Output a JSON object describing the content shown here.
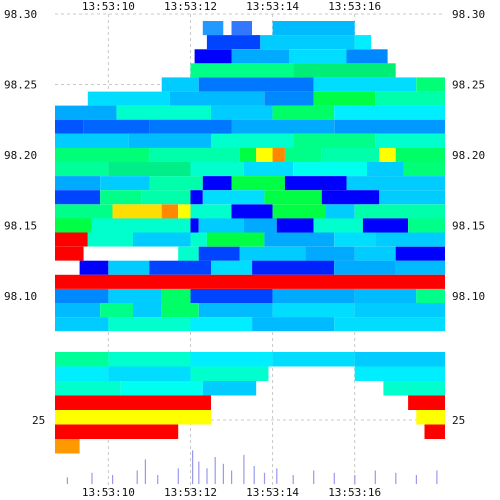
{
  "chart_data": {
    "type": "heatmap",
    "description_kind": "order-book depth heatmap with volume strip",
    "x_ticks": [
      "13:53:10",
      "13:53:12",
      "13:53:14",
      "13:53:16"
    ],
    "x_tick_seconds": [
      10,
      12,
      14,
      16
    ],
    "x_range_seconds": [
      8.7,
      18.2
    ],
    "y_ticks": [
      "98.30",
      "98.25",
      "98.20",
      "98.15",
      "98.10"
    ],
    "y_tick_values": [
      98.3,
      98.25,
      98.2,
      98.15,
      98.1
    ],
    "y_range": [
      98.075,
      98.3
    ],
    "volume_axis_label": "25",
    "grid": true,
    "grid_style": "dashed",
    "legend": "none",
    "color_scale": [
      "#0000ff",
      "#0088ff",
      "#00ccff",
      "#00ffaa",
      "#00ff44",
      "#ffff00",
      "#ff8800",
      "#ff0000"
    ],
    "rows": [
      {
        "p": 98.29,
        "segs": [
          [
            12.3,
            12.8,
            "#2299ff"
          ],
          [
            13.0,
            13.5,
            "#3377ff"
          ],
          [
            14.0,
            16.0,
            "#00bbff"
          ]
        ]
      },
      {
        "p": 98.28,
        "segs": [
          [
            12.4,
            13.7,
            "#0044ff"
          ],
          [
            13.7,
            16.0,
            "#00ccff"
          ],
          [
            16.0,
            16.4,
            "#00eeff"
          ]
        ]
      },
      {
        "p": 98.27,
        "segs": [
          [
            12.1,
            13.0,
            "#0000ff"
          ],
          [
            13.0,
            14.4,
            "#00aaff"
          ],
          [
            14.4,
            15.8,
            "#00ddff"
          ],
          [
            15.8,
            16.8,
            "#0088ff"
          ]
        ]
      },
      {
        "p": 98.26,
        "segs": [
          [
            12.0,
            14.5,
            "#00ff88"
          ],
          [
            14.5,
            17.0,
            "#00ee77"
          ]
        ]
      },
      {
        "p": 98.25,
        "segs": [
          [
            11.3,
            12.2,
            "#00ccff"
          ],
          [
            12.2,
            15.0,
            "#0077ff"
          ],
          [
            15.0,
            17.5,
            "#00ddff"
          ],
          [
            17.5,
            18.2,
            "#00ff77"
          ]
        ]
      },
      {
        "p": 98.24,
        "segs": [
          [
            9.5,
            11.5,
            "#00ddff"
          ],
          [
            11.5,
            13.8,
            "#00bbff"
          ],
          [
            13.8,
            15.0,
            "#0088ff"
          ],
          [
            15.0,
            16.5,
            "#00ff44"
          ],
          [
            16.5,
            18.2,
            "#00ffaa"
          ]
        ]
      },
      {
        "p": 98.23,
        "segs": [
          [
            8.7,
            10.2,
            "#00aaff"
          ],
          [
            10.2,
            12.5,
            "#00ffcc"
          ],
          [
            12.5,
            14.0,
            "#00ccff"
          ],
          [
            14.0,
            15.5,
            "#00ff66"
          ],
          [
            15.5,
            18.2,
            "#00eeff"
          ]
        ]
      },
      {
        "p": 98.22,
        "segs": [
          [
            8.7,
            9.4,
            "#0055ff"
          ],
          [
            9.4,
            11.0,
            "#0066ff"
          ],
          [
            11.0,
            13.0,
            "#0077ff"
          ],
          [
            13.0,
            15.5,
            "#00aaff"
          ],
          [
            15.5,
            18.2,
            "#0099ff"
          ]
        ]
      },
      {
        "p": 98.21,
        "segs": [
          [
            8.7,
            10.5,
            "#00ccff"
          ],
          [
            10.5,
            12.5,
            "#00bbff"
          ],
          [
            12.5,
            14.5,
            "#00ffcc"
          ],
          [
            14.5,
            16.5,
            "#00ff88"
          ],
          [
            16.5,
            18.2,
            "#00ffcc"
          ]
        ]
      },
      {
        "p": 98.2,
        "segs": [
          [
            8.7,
            11.0,
            "#00ff77"
          ],
          [
            11.0,
            13.2,
            "#00ffaa"
          ],
          [
            13.2,
            13.6,
            "#00ff44"
          ],
          [
            13.6,
            14.0,
            "#ffff00"
          ],
          [
            14.0,
            14.3,
            "#ff8800"
          ],
          [
            14.3,
            15.2,
            "#00ff88"
          ],
          [
            15.2,
            16.6,
            "#00ffaa"
          ],
          [
            16.6,
            17.0,
            "#ffff00"
          ],
          [
            17.0,
            18.2,
            "#00ff66"
          ]
        ]
      },
      {
        "p": 98.19,
        "segs": [
          [
            8.7,
            10.0,
            "#00ff99"
          ],
          [
            10.0,
            12.0,
            "#00ee88"
          ],
          [
            12.0,
            13.3,
            "#00ffcc"
          ],
          [
            13.3,
            14.5,
            "#00ddff"
          ],
          [
            14.5,
            16.3,
            "#00ffee"
          ],
          [
            16.3,
            17.2,
            "#00ccff"
          ],
          [
            17.2,
            18.2,
            "#00ff77"
          ]
        ]
      },
      {
        "p": 98.18,
        "segs": [
          [
            8.7,
            9.8,
            "#00aaff"
          ],
          [
            9.8,
            11.0,
            "#00ccff"
          ],
          [
            11.0,
            12.3,
            "#00ffaa"
          ],
          [
            12.3,
            13.0,
            "#0000ff"
          ],
          [
            13.0,
            14.3,
            "#00ff44"
          ],
          [
            14.3,
            15.8,
            "#0000ff"
          ],
          [
            15.8,
            18.2,
            "#00ccff"
          ]
        ]
      },
      {
        "p": 98.17,
        "segs": [
          [
            8.7,
            9.8,
            "#0044ff"
          ],
          [
            9.8,
            10.8,
            "#00ff88"
          ],
          [
            10.8,
            12.0,
            "#00ffaa"
          ],
          [
            12.0,
            12.3,
            "#0000ff"
          ],
          [
            12.3,
            13.8,
            "#00ddff"
          ],
          [
            13.8,
            15.2,
            "#00ff44"
          ],
          [
            15.2,
            16.6,
            "#0000ff"
          ],
          [
            16.6,
            18.2,
            "#00ccff"
          ]
        ]
      },
      {
        "p": 98.16,
        "segs": [
          [
            8.7,
            10.1,
            "#00ff88"
          ],
          [
            10.1,
            11.3,
            "#ffdd00"
          ],
          [
            11.3,
            11.7,
            "#ff8800"
          ],
          [
            11.7,
            12.0,
            "#ffff00"
          ],
          [
            12.0,
            13.0,
            "#00ffcc"
          ],
          [
            13.0,
            14.0,
            "#0000ff"
          ],
          [
            14.0,
            15.3,
            "#00ff44"
          ],
          [
            15.3,
            16.0,
            "#00ccff"
          ],
          [
            16.0,
            18.2,
            "#00ffaa"
          ]
        ]
      },
      {
        "p": 98.15,
        "segs": [
          [
            8.7,
            9.6,
            "#00ff44"
          ],
          [
            9.6,
            12.0,
            "#00ffcc"
          ],
          [
            12.0,
            12.2,
            "#0000ff"
          ],
          [
            12.2,
            13.3,
            "#00ccff"
          ],
          [
            13.3,
            14.1,
            "#00aaff"
          ],
          [
            14.1,
            15.0,
            "#0000ff"
          ],
          [
            15.0,
            16.2,
            "#00ffcc"
          ],
          [
            16.2,
            17.3,
            "#0000ff"
          ],
          [
            17.3,
            18.2,
            "#00ff88"
          ]
        ]
      },
      {
        "p": 98.14,
        "segs": [
          [
            8.7,
            9.5,
            "#ff0000"
          ],
          [
            9.5,
            10.6,
            "#00ffcc"
          ],
          [
            10.6,
            12.0,
            "#00ccff"
          ],
          [
            12.0,
            12.4,
            "#00ffcc"
          ],
          [
            12.4,
            13.8,
            "#00ff44"
          ],
          [
            13.8,
            15.5,
            "#00aaff"
          ],
          [
            15.5,
            16.5,
            "#00ddff"
          ],
          [
            16.5,
            18.2,
            "#00ccff"
          ]
        ]
      },
      {
        "p": 98.13,
        "segs": [
          [
            8.7,
            9.4,
            "#ff0000"
          ],
          [
            9.4,
            10.2,
            "#ffffff"
          ],
          [
            10.2,
            11.7,
            "#ffffff"
          ],
          [
            11.7,
            12.2,
            "#00ffcc"
          ],
          [
            12.2,
            13.2,
            "#0044ff"
          ],
          [
            13.2,
            14.8,
            "#00ccff"
          ],
          [
            14.8,
            16.0,
            "#00aaff"
          ],
          [
            16.0,
            17.0,
            "#00ccff"
          ],
          [
            17.0,
            18.2,
            "#0000ff"
          ]
        ]
      },
      {
        "p": 98.12,
        "segs": [
          [
            8.7,
            9.3,
            "#ffffff"
          ],
          [
            9.3,
            10.0,
            "#0000ff"
          ],
          [
            10.0,
            11.0,
            "#00ccff"
          ],
          [
            11.0,
            12.5,
            "#0044ff"
          ],
          [
            12.5,
            13.5,
            "#00ddff"
          ],
          [
            13.5,
            15.5,
            "#0022ff"
          ],
          [
            15.5,
            17.0,
            "#00aaff"
          ],
          [
            17.0,
            18.2,
            "#00bbff"
          ]
        ]
      },
      {
        "p": 98.11,
        "segs": [
          [
            8.7,
            18.2,
            "#ff0000"
          ]
        ]
      },
      {
        "p": 98.1,
        "segs": [
          [
            8.7,
            10.0,
            "#0088ff"
          ],
          [
            10.0,
            11.3,
            "#00ccff"
          ],
          [
            11.3,
            12.0,
            "#00ff66"
          ],
          [
            12.0,
            14.0,
            "#0044ff"
          ],
          [
            14.0,
            16.0,
            "#00aaff"
          ],
          [
            16.0,
            17.5,
            "#00bbff"
          ],
          [
            17.5,
            18.2,
            "#00ff88"
          ]
        ]
      },
      {
        "p": 98.09,
        "segs": [
          [
            8.7,
            9.8,
            "#00bbff"
          ],
          [
            9.8,
            10.6,
            "#00ff88"
          ],
          [
            10.6,
            11.3,
            "#00ccff"
          ],
          [
            11.3,
            12.2,
            "#00ff66"
          ],
          [
            12.2,
            14.0,
            "#00bbff"
          ],
          [
            14.0,
            16.0,
            "#00ddff"
          ],
          [
            16.0,
            18.2,
            "#00ccff"
          ]
        ]
      },
      {
        "p": 98.08,
        "segs": [
          [
            8.7,
            10.0,
            "#00ccff"
          ],
          [
            10.0,
            12.0,
            "#00ffcc"
          ],
          [
            12.0,
            13.5,
            "#00eeff"
          ],
          [
            13.5,
            15.5,
            "#00bbff"
          ],
          [
            15.5,
            18.2,
            "#00ddff"
          ]
        ]
      }
    ],
    "lower_rows": [
      {
        "segs": [
          [
            8.7,
            10.0,
            "#00ff99"
          ],
          [
            10.0,
            12.0,
            "#00ffcc"
          ],
          [
            12.0,
            14.0,
            "#00eeff"
          ],
          [
            14.0,
            16.0,
            "#00ddff"
          ],
          [
            16.0,
            18.2,
            "#00ccff"
          ]
        ]
      },
      {
        "segs": [
          [
            8.7,
            10.0,
            "#00eeff"
          ],
          [
            10.0,
            12.0,
            "#00ddff"
          ],
          [
            12.0,
            13.9,
            "#00ffcc"
          ],
          [
            16.0,
            18.2,
            "#00eeff"
          ]
        ]
      },
      {
        "segs": [
          [
            8.7,
            10.3,
            "#00ffcc"
          ],
          [
            10.3,
            12.3,
            "#00ffee"
          ],
          [
            12.3,
            13.6,
            "#00ccff"
          ],
          [
            16.7,
            18.2,
            "#00ffcc"
          ]
        ]
      },
      {
        "segs": [
          [
            8.7,
            12.5,
            "#ff0000"
          ],
          [
            17.3,
            18.2,
            "#ff0000"
          ]
        ]
      },
      {
        "segs": [
          [
            8.7,
            12.5,
            "#ffff00"
          ],
          [
            17.5,
            18.2,
            "#ffff00"
          ]
        ]
      },
      {
        "segs": [
          [
            8.7,
            11.7,
            "#ff0000"
          ],
          [
            17.7,
            18.2,
            "#ff0000"
          ]
        ]
      },
      {
        "segs": [
          [
            8.7,
            9.3,
            "#ff9900"
          ]
        ]
      }
    ],
    "volume_bars": [
      {
        "x": 9.0,
        "v": 0.15
      },
      {
        "x": 9.6,
        "v": 0.25
      },
      {
        "x": 10.1,
        "v": 0.2
      },
      {
        "x": 10.7,
        "v": 0.3
      },
      {
        "x": 10.9,
        "v": 0.55
      },
      {
        "x": 11.2,
        "v": 0.2
      },
      {
        "x": 11.7,
        "v": 0.35
      },
      {
        "x": 12.05,
        "v": 0.75
      },
      {
        "x": 12.2,
        "v": 0.5
      },
      {
        "x": 12.4,
        "v": 0.35
      },
      {
        "x": 12.6,
        "v": 0.6
      },
      {
        "x": 12.8,
        "v": 0.45
      },
      {
        "x": 13.0,
        "v": 0.3
      },
      {
        "x": 13.3,
        "v": 0.65
      },
      {
        "x": 13.55,
        "v": 0.4
      },
      {
        "x": 13.8,
        "v": 0.25
      },
      {
        "x": 14.1,
        "v": 0.35
      },
      {
        "x": 14.5,
        "v": 0.2
      },
      {
        "x": 15.0,
        "v": 0.3
      },
      {
        "x": 15.5,
        "v": 0.25
      },
      {
        "x": 16.0,
        "v": 0.2
      },
      {
        "x": 16.5,
        "v": 0.3
      },
      {
        "x": 17.0,
        "v": 0.25
      },
      {
        "x": 17.5,
        "v": 0.2
      },
      {
        "x": 18.0,
        "v": 0.3
      }
    ]
  }
}
